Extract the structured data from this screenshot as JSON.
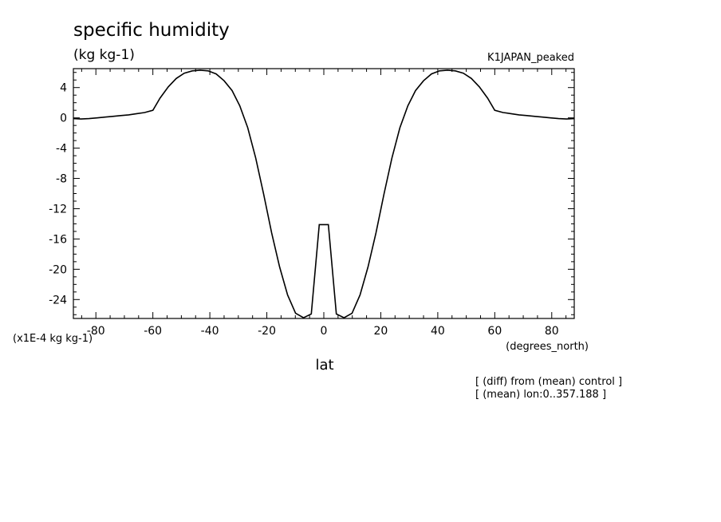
{
  "chart_data": {
    "type": "line",
    "title": "specific humidity",
    "units_label": "(kg kg-1)",
    "experiment_label": "K1JAPAN_peaked",
    "scale_label": "(x1E-4 kg kg-1)",
    "x_units_label": "(degrees_north)",
    "xlabel": "lat",
    "notes": [
      "[ (diff) from (mean) control ]",
      "[ (mean) lon:0..357.188 ]"
    ],
    "xlim": [
      -87.9,
      87.9
    ],
    "ylim": [
      -26.5,
      6.5
    ],
    "xticks": [
      -80,
      -60,
      -40,
      -20,
      0,
      20,
      40,
      60,
      80
    ],
    "yticks": [
      4,
      0,
      -4,
      -8,
      -12,
      -16,
      -20,
      -24
    ],
    "grid": false,
    "series": [
      {
        "x": [
          -87.9,
          -85.2,
          -82.4,
          -79.6,
          -76.8,
          -74.1,
          -71.3,
          -68.5,
          -65.7,
          -62.9,
          -60.0,
          -57.5,
          -54.6,
          -51.8,
          -49.0,
          -46.2,
          -43.4,
          -40.6,
          -37.8,
          -35.0,
          -32.2,
          -29.5,
          -26.7,
          -23.9,
          -21.1,
          -18.3,
          -15.5,
          -12.7,
          -9.9,
          -7.1,
          -4.4,
          -1.6,
          1.6,
          4.4,
          7.1,
          9.9,
          12.7,
          15.5,
          18.3,
          21.1,
          23.9,
          26.7,
          29.5,
          32.2,
          35.0,
          37.8,
          40.6,
          43.4,
          46.2,
          49.0,
          51.8,
          54.6,
          57.5,
          60.0,
          62.9,
          65.7,
          68.5,
          71.3,
          74.1,
          76.8,
          79.6,
          82.4,
          85.2,
          87.9
        ],
        "values": [
          -0.1,
          -0.15,
          -0.1,
          0.0,
          0.1,
          0.2,
          0.3,
          0.4,
          0.55,
          0.7,
          1.0,
          2.6,
          4.1,
          5.2,
          5.9,
          6.2,
          6.3,
          6.2,
          5.8,
          4.9,
          3.6,
          1.6,
          -1.3,
          -5.3,
          -10.1,
          -15.2,
          -19.7,
          -23.4,
          -25.8,
          -26.4,
          -25.9,
          -14.1,
          -14.1,
          -25.9,
          -26.4,
          -25.8,
          -23.4,
          -19.7,
          -15.2,
          -10.1,
          -5.3,
          -1.3,
          1.6,
          3.6,
          4.9,
          5.8,
          6.2,
          6.3,
          6.2,
          5.9,
          5.2,
          4.1,
          2.6,
          1.0,
          0.7,
          0.55,
          0.4,
          0.3,
          0.2,
          0.1,
          0.0,
          -0.1,
          -0.15,
          -0.1
        ]
      }
    ]
  }
}
